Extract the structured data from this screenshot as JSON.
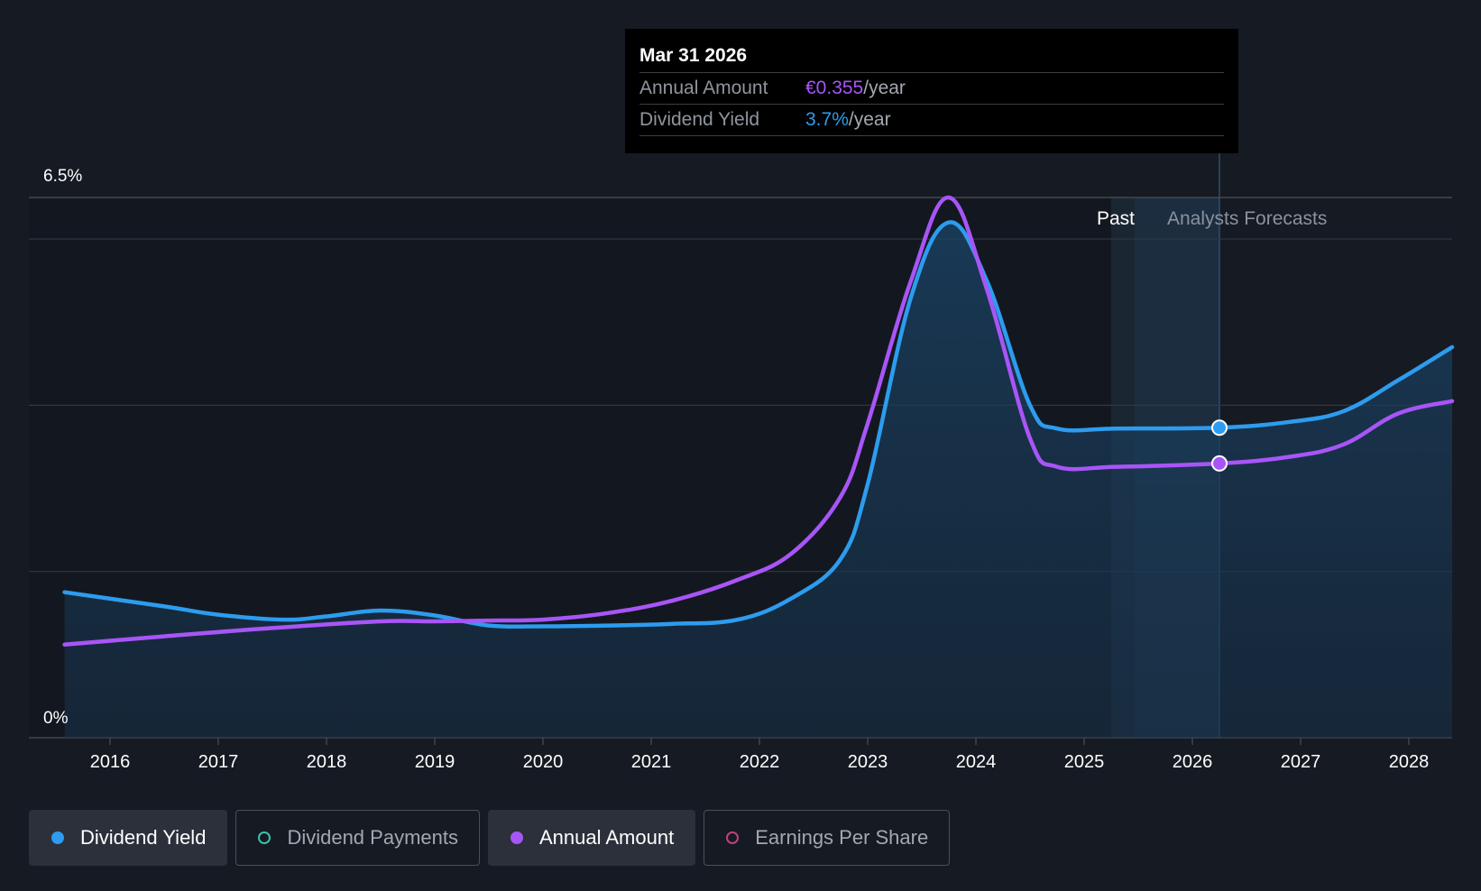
{
  "chart_data": {
    "type": "line",
    "x_range": [
      2015.25,
      2028.4
    ],
    "y_range": [
      0,
      6.5
    ],
    "y_tick_labels": [
      "6.5%",
      "0%"
    ],
    "x_ticks": [
      "2016",
      "2017",
      "2018",
      "2019",
      "2020",
      "2021",
      "2022",
      "2023",
      "2024",
      "2025",
      "2026",
      "2027",
      "2028"
    ],
    "gridlines": [
      6.5,
      6.0,
      4.0,
      2.0
    ],
    "regions": {
      "past_label": "Past",
      "forecast_label": "Analysts Forecasts",
      "past_end": 2025.25,
      "cursor_x": 2026.25
    },
    "series": [
      {
        "name": "Dividend Yield",
        "color": "#2d9cee",
        "fill": true,
        "x": [
          2015.58,
          2016.5,
          2017.0,
          2017.6,
          2018.0,
          2018.5,
          2019.0,
          2019.5,
          2020.0,
          2020.6,
          2021.2,
          2021.8,
          2022.3,
          2022.75,
          2023.0,
          2023.4,
          2023.75,
          2024.1,
          2024.5,
          2024.75,
          2025.3,
          2026.25,
          2026.9,
          2027.4,
          2027.9,
          2028.4
        ],
        "y": [
          1.75,
          1.58,
          1.48,
          1.42,
          1.46,
          1.53,
          1.47,
          1.35,
          1.34,
          1.35,
          1.37,
          1.42,
          1.68,
          2.15,
          3.05,
          5.3,
          6.2,
          5.5,
          4.0,
          3.72,
          3.72,
          3.73,
          3.8,
          3.93,
          4.3,
          4.7
        ]
      },
      {
        "name": "Annual Amount",
        "color": "#a855f7",
        "fill": false,
        "x": [
          2015.58,
          2016.5,
          2017.5,
          2018.5,
          2019.0,
          2019.5,
          2020.0,
          2020.6,
          2021.2,
          2021.8,
          2022.3,
          2022.75,
          2023.0,
          2023.4,
          2023.75,
          2024.1,
          2024.5,
          2024.75,
          2025.3,
          2026.25,
          2026.9,
          2027.4,
          2027.9,
          2028.4
        ],
        "y": [
          1.12,
          1.22,
          1.32,
          1.4,
          1.4,
          1.41,
          1.42,
          1.5,
          1.65,
          1.9,
          2.22,
          2.9,
          3.78,
          5.5,
          6.5,
          5.4,
          3.6,
          3.26,
          3.26,
          3.3,
          3.38,
          3.53,
          3.9,
          4.05
        ]
      }
    ],
    "highlight": {
      "x": 2026.25,
      "yield_y": 3.73,
      "amount_y": 3.3
    }
  },
  "tooltip": {
    "date": "Mar 31 2026",
    "annual_label": "Annual Amount",
    "annual_value": "€0.355",
    "annual_unit": "/year",
    "yield_label": "Dividend Yield",
    "yield_value": "3.7%",
    "yield_unit": "/year"
  },
  "legend": [
    {
      "label": "Dividend Yield",
      "state": "active",
      "dot": "filled-blue"
    },
    {
      "label": "Dividend Payments",
      "state": "inactive",
      "dot": "ring-teal"
    },
    {
      "label": "Annual Amount",
      "state": "active",
      "dot": "filled-purple"
    },
    {
      "label": "Earnings Per Share",
      "state": "inactive",
      "dot": "ring-pink"
    }
  ]
}
